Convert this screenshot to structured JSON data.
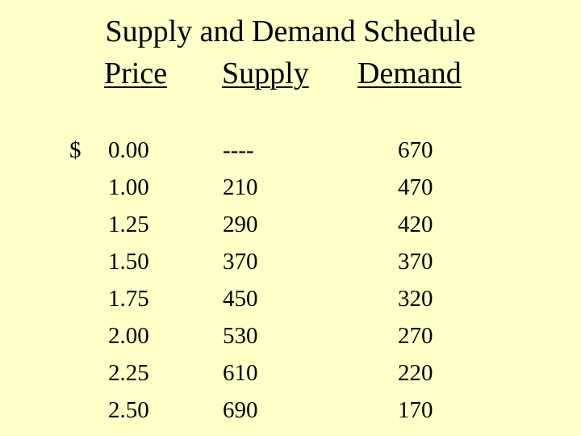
{
  "title": "Supply and Demand Schedule",
  "headers": {
    "price": "Price",
    "supply": "Supply",
    "demand": "Demand"
  },
  "currency_symbol": "$",
  "rows": [
    {
      "price": "0.00",
      "supply": "----",
      "demand": "670"
    },
    {
      "price": "1.00",
      "supply": "210",
      "demand": "470"
    },
    {
      "price": "1.25",
      "supply": "290",
      "demand": "420"
    },
    {
      "price": "1.50",
      "supply": "370",
      "demand": "370"
    },
    {
      "price": "1.75",
      "supply": "450",
      "demand": "320"
    },
    {
      "price": "2.00",
      "supply": "530",
      "demand": "270"
    },
    {
      "price": "2.25",
      "supply": "610",
      "demand": "220"
    },
    {
      "price": "2.50",
      "supply": "690",
      "demand": "170"
    }
  ],
  "colors": {
    "background": "#ffffc8",
    "text": "#000000"
  }
}
